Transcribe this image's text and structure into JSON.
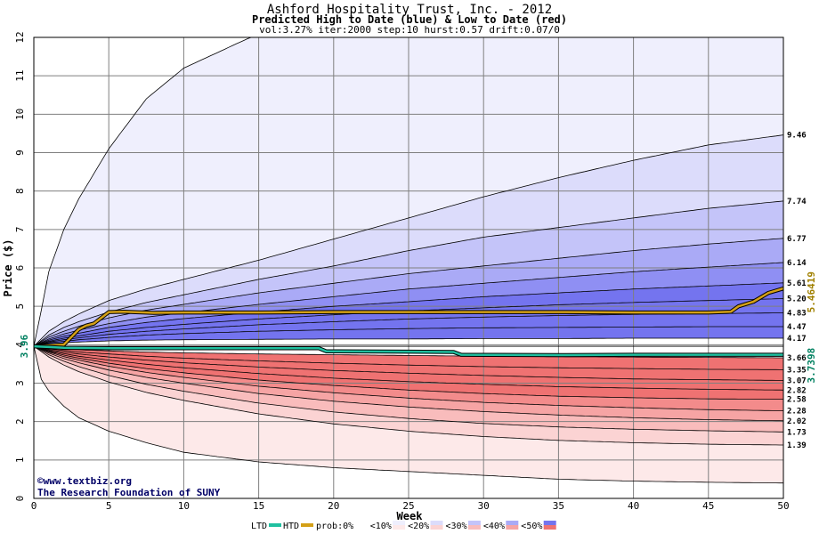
{
  "chart_data": {
    "type": "area",
    "title": "Ashford Hospitality Trust, Inc. - 2012",
    "subtitle": "Predicted High to Date (blue) &  Low to Date (red)",
    "params": "vol:3.27% iter:2000 step:10 hurst:0.57 drift:0.07/0",
    "xlabel": "Week",
    "ylabel": "Price ($)",
    "xlim": [
      0,
      50
    ],
    "ylim": [
      0,
      12
    ],
    "x_ticks": [
      0,
      5,
      10,
      15,
      20,
      25,
      30,
      35,
      40,
      45,
      50
    ],
    "y_ticks": [
      0,
      1,
      2,
      3,
      4,
      5,
      6,
      7,
      8,
      9,
      10,
      11,
      12
    ],
    "grid": true,
    "start_price": 3.96,
    "start_label": "3.96",
    "colors": {
      "blue_bands": [
        "#efeffd",
        "#dcdcfb",
        "#c4c4f9",
        "#aaaaf6",
        "#8f8ff3",
        "#7474ef"
      ],
      "red_bands": [
        "#fde9e9",
        "#fbd3d3",
        "#f9bcbc",
        "#f6a4a4",
        "#f38b8b",
        "#ef7272"
      ],
      "htd": "#d4a017",
      "ltd": "#20c0a0"
    },
    "high_quantiles": [
      {
        "x": [
          0,
          0.5,
          1,
          2,
          3,
          5,
          7.5,
          10,
          15,
          20,
          25,
          30,
          35,
          40,
          45,
          50
        ],
        "values": [
          3.96,
          4.9,
          5.9,
          7.0,
          7.8,
          9.1,
          10.4,
          11.2,
          12.1,
          12.5,
          12.5,
          12.5,
          12.5,
          12.5,
          12.5,
          12.5
        ]
      },
      {
        "x": [
          0,
          1,
          2,
          3,
          5,
          7.5,
          10,
          15,
          20,
          25,
          30,
          35,
          40,
          45,
          50
        ],
        "values": [
          3.96,
          4.35,
          4.6,
          4.8,
          5.15,
          5.45,
          5.7,
          6.2,
          6.75,
          7.3,
          7.85,
          8.35,
          8.8,
          9.2,
          9.46
        ]
      },
      {
        "x": [
          0,
          1,
          2,
          3,
          5,
          7.5,
          10,
          15,
          20,
          25,
          30,
          35,
          40,
          45,
          50
        ],
        "values": [
          3.96,
          4.25,
          4.45,
          4.6,
          4.85,
          5.1,
          5.3,
          5.7,
          6.05,
          6.45,
          6.8,
          7.05,
          7.3,
          7.55,
          7.74
        ]
      },
      {
        "x": [
          0,
          1,
          2,
          3,
          5,
          7.5,
          10,
          15,
          20,
          25,
          30,
          35,
          40,
          45,
          50
        ],
        "values": [
          3.96,
          4.2,
          4.35,
          4.48,
          4.7,
          4.9,
          5.05,
          5.35,
          5.6,
          5.85,
          6.05,
          6.25,
          6.45,
          6.62,
          6.77
        ]
      },
      {
        "x": [
          0,
          1,
          2,
          3,
          5,
          7.5,
          10,
          15,
          20,
          25,
          30,
          35,
          40,
          45,
          50
        ],
        "values": [
          3.96,
          4.15,
          4.28,
          4.38,
          4.55,
          4.72,
          4.83,
          5.05,
          5.25,
          5.45,
          5.6,
          5.75,
          5.9,
          6.02,
          6.14
        ]
      },
      {
        "x": [
          0,
          1,
          2,
          3,
          5,
          7.5,
          10,
          15,
          20,
          25,
          30,
          35,
          40,
          45,
          50
        ],
        "values": [
          3.96,
          4.12,
          4.22,
          4.3,
          4.45,
          4.58,
          4.68,
          4.85,
          5.0,
          5.12,
          5.25,
          5.35,
          5.45,
          5.53,
          5.61
        ]
      },
      {
        "x": [
          0,
          1,
          2,
          3,
          5,
          7.5,
          10,
          15,
          20,
          25,
          30,
          35,
          40,
          45,
          50
        ],
        "values": [
          3.96,
          4.09,
          4.17,
          4.23,
          4.35,
          4.45,
          4.53,
          4.67,
          4.78,
          4.88,
          4.96,
          5.04,
          5.1,
          5.15,
          5.2
        ]
      },
      {
        "x": [
          0,
          1,
          2,
          3,
          5,
          7.5,
          10,
          15,
          20,
          25,
          30,
          35,
          40,
          45,
          50
        ],
        "values": [
          3.96,
          4.07,
          4.13,
          4.18,
          4.27,
          4.35,
          4.41,
          4.52,
          4.6,
          4.67,
          4.72,
          4.76,
          4.79,
          4.81,
          4.83
        ]
      },
      {
        "x": [
          0,
          1,
          2,
          3,
          5,
          7.5,
          10,
          15,
          20,
          25,
          30,
          35,
          40,
          45,
          50
        ],
        "values": [
          3.96,
          4.05,
          4.09,
          4.13,
          4.19,
          4.25,
          4.29,
          4.35,
          4.39,
          4.42,
          4.44,
          4.45,
          4.46,
          4.47,
          4.47
        ]
      },
      {
        "x": [
          0,
          1,
          2,
          3,
          5,
          7.5,
          10,
          15,
          20,
          25,
          30,
          35,
          40,
          45,
          50
        ],
        "values": [
          3.96,
          4.02,
          4.05,
          4.07,
          4.1,
          4.12,
          4.13,
          4.14,
          4.15,
          4.15,
          4.16,
          4.16,
          4.17,
          4.17,
          4.17
        ]
      }
    ],
    "low_quantiles": [
      {
        "x": [
          0,
          1,
          2,
          3,
          5,
          7.5,
          10,
          15,
          20,
          25,
          30,
          35,
          40,
          45,
          50
        ],
        "values": [
          3.96,
          3.92,
          3.89,
          3.87,
          3.84,
          3.81,
          3.79,
          3.76,
          3.74,
          3.72,
          3.7,
          3.69,
          3.68,
          3.67,
          3.66
        ]
      },
      {
        "x": [
          0,
          1,
          2,
          3,
          5,
          7.5,
          10,
          15,
          20,
          25,
          30,
          35,
          40,
          45,
          50
        ],
        "values": [
          3.96,
          3.89,
          3.85,
          3.81,
          3.76,
          3.7,
          3.65,
          3.58,
          3.52,
          3.47,
          3.43,
          3.4,
          3.38,
          3.36,
          3.35
        ]
      },
      {
        "x": [
          0,
          1,
          2,
          3,
          5,
          7.5,
          10,
          15,
          20,
          25,
          30,
          35,
          40,
          45,
          50
        ],
        "values": [
          3.96,
          3.87,
          3.81,
          3.76,
          3.68,
          3.6,
          3.53,
          3.42,
          3.33,
          3.26,
          3.2,
          3.15,
          3.11,
          3.09,
          3.07
        ]
      },
      {
        "x": [
          0,
          1,
          2,
          3,
          5,
          7.5,
          10,
          15,
          20,
          25,
          30,
          35,
          40,
          45,
          50
        ],
        "values": [
          3.96,
          3.85,
          3.77,
          3.7,
          3.6,
          3.49,
          3.4,
          3.25,
          3.13,
          3.04,
          2.97,
          2.91,
          2.87,
          2.84,
          2.82
        ]
      },
      {
        "x": [
          0,
          1,
          2,
          3,
          5,
          7.5,
          10,
          15,
          20,
          25,
          30,
          35,
          40,
          45,
          50
        ],
        "values": [
          3.96,
          3.83,
          3.73,
          3.65,
          3.52,
          3.38,
          3.27,
          3.08,
          2.94,
          2.82,
          2.73,
          2.66,
          2.62,
          2.59,
          2.58
        ]
      },
      {
        "x": [
          0,
          1,
          2,
          3,
          5,
          7.5,
          10,
          15,
          20,
          25,
          30,
          35,
          40,
          45,
          50
        ],
        "values": [
          3.96,
          3.81,
          3.69,
          3.6,
          3.44,
          3.28,
          3.15,
          2.92,
          2.75,
          2.61,
          2.5,
          2.42,
          2.36,
          2.31,
          2.28
        ]
      },
      {
        "x": [
          0,
          1,
          2,
          3,
          5,
          7.5,
          10,
          15,
          20,
          25,
          30,
          35,
          40,
          45,
          50
        ],
        "values": [
          3.96,
          3.78,
          3.64,
          3.53,
          3.34,
          3.15,
          3.0,
          2.73,
          2.53,
          2.38,
          2.26,
          2.17,
          2.1,
          2.05,
          2.02
        ]
      },
      {
        "x": [
          0,
          1,
          2,
          3,
          5,
          7.5,
          10,
          15,
          20,
          25,
          30,
          35,
          40,
          45,
          50
        ],
        "values": [
          3.96,
          3.74,
          3.57,
          3.43,
          3.2,
          2.97,
          2.79,
          2.48,
          2.25,
          2.08,
          1.95,
          1.86,
          1.8,
          1.76,
          1.73
        ]
      },
      {
        "x": [
          0,
          1,
          2,
          3,
          5,
          7.5,
          10,
          15,
          20,
          25,
          30,
          35,
          40,
          45,
          50
        ],
        "values": [
          3.96,
          3.68,
          3.47,
          3.3,
          3.03,
          2.76,
          2.55,
          2.2,
          1.94,
          1.75,
          1.61,
          1.51,
          1.45,
          1.41,
          1.39
        ]
      },
      {
        "x": [
          0,
          0.5,
          1,
          2,
          3,
          5,
          7.5,
          10,
          15,
          20,
          25,
          30,
          35,
          40,
          45,
          50
        ],
        "values": [
          3.96,
          3.1,
          2.8,
          2.4,
          2.1,
          1.75,
          1.45,
          1.2,
          0.95,
          0.8,
          0.7,
          0.6,
          0.5,
          0.45,
          0.42,
          0.4
        ]
      }
    ],
    "end_labels": [
      "9.46",
      "7.74",
      "6.77",
      "6.14",
      "5.61",
      "5.20",
      "4.83",
      "4.47",
      "4.17",
      "3.66",
      "3.35",
      "3.07",
      "2.82",
      "2.58",
      "2.28",
      "2.02",
      "1.73",
      "1.39"
    ],
    "end_values": [
      9.46,
      7.74,
      6.77,
      6.14,
      5.61,
      5.2,
      4.83,
      4.47,
      4.17,
      3.66,
      3.35,
      3.07,
      2.82,
      2.58,
      2.28,
      2.02,
      1.73,
      1.39
    ],
    "series": [
      {
        "name": "HTD",
        "x": [
          0,
          1,
          2,
          2.5,
          3,
          3.5,
          4,
          4.5,
          5,
          6,
          8,
          10,
          15,
          20,
          25,
          30,
          35,
          40,
          45,
          46.5,
          47,
          48,
          49,
          50
        ],
        "values": [
          3.96,
          3.98,
          4.0,
          4.2,
          4.4,
          4.5,
          4.55,
          4.7,
          4.85,
          4.86,
          4.83,
          4.84,
          4.84,
          4.85,
          4.85,
          4.85,
          4.85,
          4.84,
          4.84,
          4.86,
          5.0,
          5.12,
          5.35,
          5.46419
        ],
        "label": "5.46419"
      },
      {
        "name": "LTD",
        "x": [
          0,
          1,
          2,
          5,
          10,
          15,
          18,
          19,
          19.5,
          25,
          28,
          28.5,
          35,
          40,
          45,
          50
        ],
        "values": [
          3.96,
          3.94,
          3.92,
          3.91,
          3.91,
          3.91,
          3.91,
          3.91,
          3.83,
          3.82,
          3.81,
          3.74,
          3.73,
          3.74,
          3.74,
          3.7398
        ],
        "label": "3.7398"
      }
    ],
    "credits": [
      "©www.textbiz.org",
      "The Research Foundation of SUNY"
    ],
    "legend": {
      "placement": "bottom",
      "ltd": "LTD",
      "htd": "HTD",
      "prob_items": [
        "prob:0%",
        "<10%",
        "<20%",
        "<30%",
        "<40%",
        "<50%"
      ]
    }
  }
}
